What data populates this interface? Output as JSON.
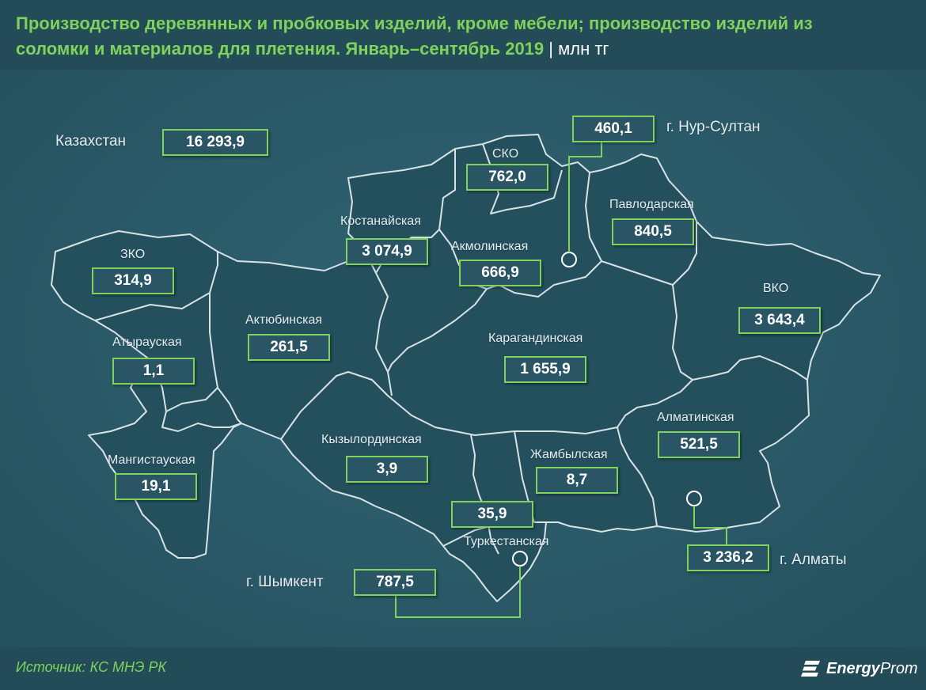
{
  "title": {
    "line1": "Производство деревянных и пробковых изделий, кроме мебели; производство изделий из",
    "line2": "соломки и материалов для плетения. Январь–сентябрь 2019",
    "unit": "| млн тг"
  },
  "kazakhstan": {
    "label": "Казахстан",
    "value": "16 293,9"
  },
  "regions": [
    {
      "id": "zko",
      "name": "ЗКО",
      "value": "314,9"
    },
    {
      "id": "atyrau",
      "name": "Атырауская",
      "value": "1,1"
    },
    {
      "id": "mangistau",
      "name": "Мангистауская",
      "value": "19,1"
    },
    {
      "id": "aktobe",
      "name": "Актюбинская",
      "value": "261,5"
    },
    {
      "id": "kostanay",
      "name": "Костанайская",
      "value": "3 074,9"
    },
    {
      "id": "sko",
      "name": "СКО",
      "value": "762,0"
    },
    {
      "id": "akmola",
      "name": "Акмолинская",
      "value": "666,9"
    },
    {
      "id": "pavlodar",
      "name": "Павлодарская",
      "value": "840,5"
    },
    {
      "id": "vko",
      "name": "ВКО",
      "value": "3 643,4"
    },
    {
      "id": "karaganda",
      "name": "Карагандинская",
      "value": "1 655,9"
    },
    {
      "id": "kyzylorda",
      "name": "Кызылординская",
      "value": "3,9"
    },
    {
      "id": "zhambyl",
      "name": "Жамбылская",
      "value": "8,7"
    },
    {
      "id": "almaty_obl",
      "name": "Алматинская",
      "value": "521,5"
    },
    {
      "id": "turkestan",
      "name": "Туркестанская",
      "value": "35,9"
    }
  ],
  "cities": [
    {
      "id": "nur_sultan",
      "name": "г. Нур-Султан",
      "value": "460,1"
    },
    {
      "id": "almaty",
      "name": "г. Алматы",
      "value": "3 236,2"
    },
    {
      "id": "shymkent",
      "name": "г. Шымкент",
      "value": "787,5"
    }
  ],
  "source": "Источник: КС МНЭ РК",
  "logo": {
    "bold": "Energy",
    "light": "Prom"
  },
  "colors": {
    "accent": "#7ed35a",
    "background": "#2a5866",
    "region_fill": "#24505e",
    "border": "#d7e2e5"
  }
}
